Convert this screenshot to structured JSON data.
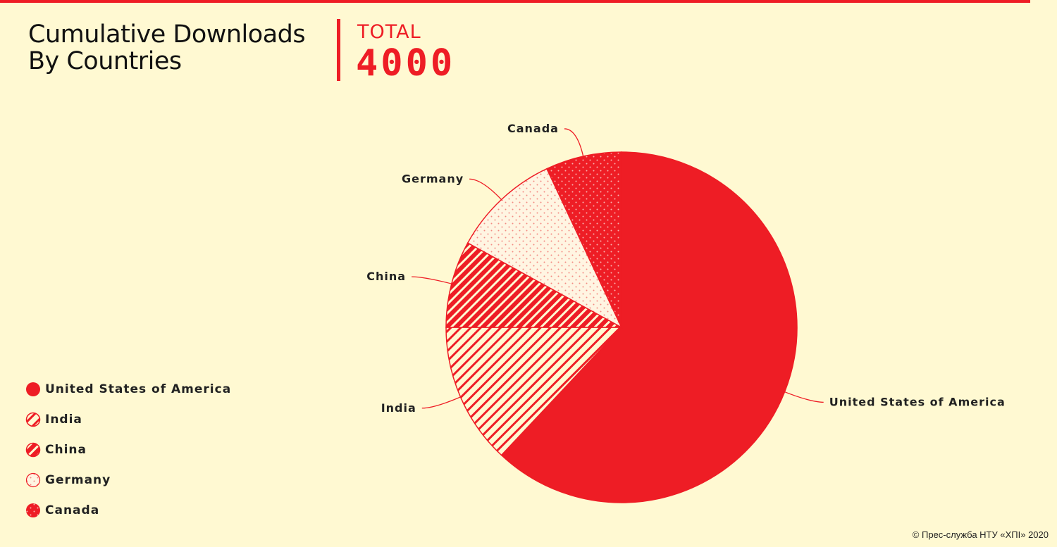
{
  "header": {
    "title_line1": "Cumulative Downloads",
    "title_line2": "By Countries",
    "total_label": "TOTAL",
    "total_value": "4000"
  },
  "colors": {
    "background": "#fff9d2",
    "accent": "#ee1d25",
    "text": "#222222"
  },
  "chart_data": {
    "type": "pie",
    "categories": [
      "United States of America",
      "India",
      "China",
      "Germany",
      "Canada"
    ],
    "values": [
      62,
      13,
      8,
      10,
      7
    ],
    "patterns": [
      "solid",
      "light-stripes",
      "dense-stripes",
      "dots-light",
      "dots-dense"
    ],
    "legend_position": "bottom-left"
  },
  "legend": {
    "items": [
      {
        "label": "United States of America",
        "pattern": "solid"
      },
      {
        "label": "India",
        "pattern": "light-stripes"
      },
      {
        "label": "China",
        "pattern": "dense-stripes"
      },
      {
        "label": "Germany",
        "pattern": "dots-light"
      },
      {
        "label": "Canada",
        "pattern": "dots-dense"
      }
    ]
  },
  "credit": "© Прес-служба НТУ «ХПІ» 2020"
}
